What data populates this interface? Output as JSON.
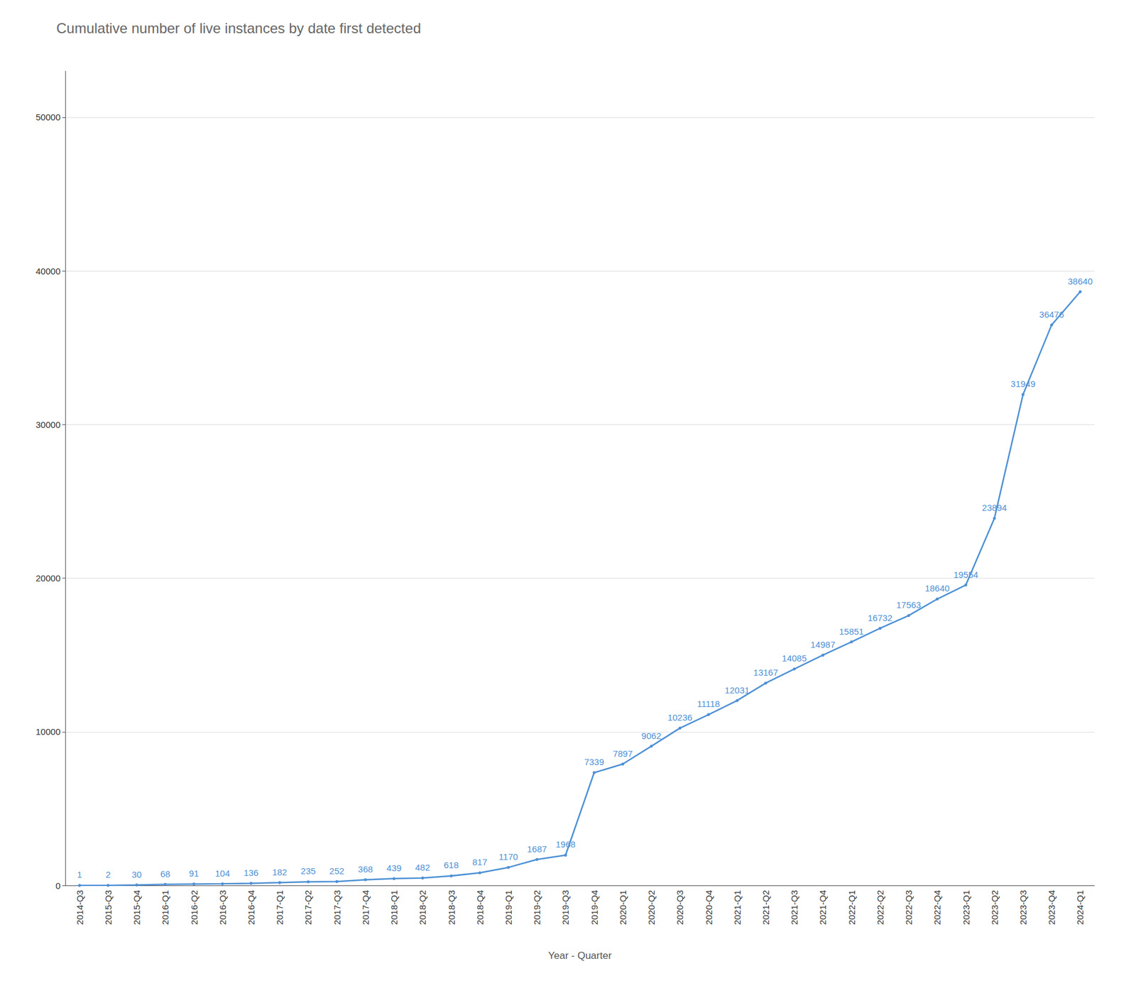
{
  "chart_data": {
    "type": "line",
    "title": "Cumulative number of live instances by date first detected",
    "xlabel": "Year - Quarter",
    "categories": [
      "2014-Q3",
      "2015-Q3",
      "2015-Q4",
      "2016-Q1",
      "2016-Q2",
      "2016-Q3",
      "2016-Q4",
      "2017-Q1",
      "2017-Q2",
      "2017-Q3",
      "2017-Q4",
      "2018-Q1",
      "2018-Q2",
      "2018-Q3",
      "2018-Q4",
      "2019-Q1",
      "2019-Q2",
      "2019-Q3",
      "2019-Q4",
      "2020-Q1",
      "2020-Q2",
      "2020-Q3",
      "2020-Q4",
      "2021-Q1",
      "2021-Q2",
      "2021-Q3",
      "2021-Q4",
      "2022-Q1",
      "2022-Q2",
      "2022-Q3",
      "2022-Q4",
      "2023-Q1",
      "2023-Q2",
      "2023-Q3",
      "2023-Q4",
      "2024-Q1"
    ],
    "values": [
      1,
      2,
      30,
      68,
      91,
      104,
      136,
      182,
      235,
      252,
      368,
      439,
      482,
      618,
      817,
      1170,
      1687,
      1968,
      7339,
      7897,
      9062,
      10236,
      11118,
      12031,
      13167,
      14085,
      14987,
      15851,
      16732,
      17563,
      18640,
      19554,
      23894,
      31949,
      36476,
      38640
    ],
    "color": "#4d90d5",
    "ylim": [
      0,
      53000
    ],
    "yticks": [
      0,
      10000,
      20000,
      30000,
      40000,
      50000
    ],
    "grid": true,
    "data_labels": true
  }
}
